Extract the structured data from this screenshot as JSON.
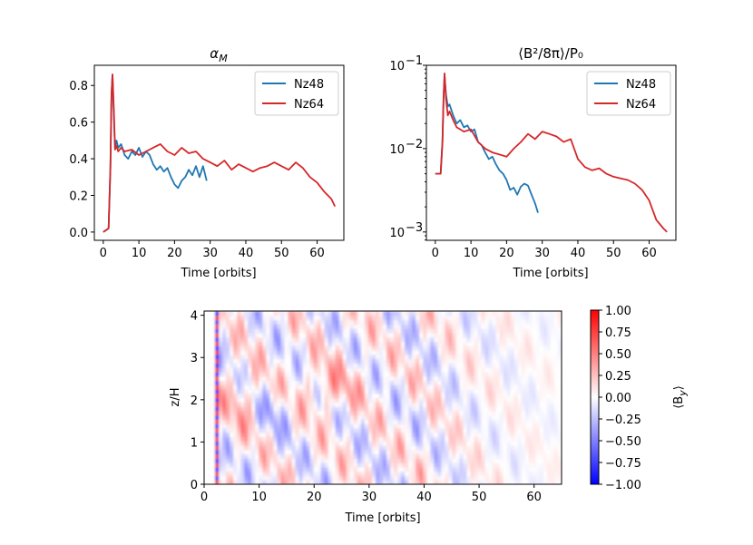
{
  "chart_data": [
    {
      "type": "line",
      "title_base": "α",
      "title_sub": "M",
      "xlabel": "Time [orbits]",
      "ylabel": "",
      "xlim": [
        -2.5,
        67.5
      ],
      "ylim": [
        -0.045,
        0.91
      ],
      "xticks": [
        0,
        10,
        20,
        30,
        40,
        50,
        60
      ],
      "yticks": [
        0.0,
        0.2,
        0.4,
        0.6,
        0.8
      ],
      "ytick_labels": [
        "0.0",
        "0.2",
        "0.4",
        "0.6",
        "0.8"
      ],
      "legend": [
        "Nz48",
        "Nz64"
      ],
      "legend_position": "upper-right",
      "series": [
        {
          "name": "Nz48",
          "color": "#1f77b4",
          "x": [
            0,
            1.5,
            2.0,
            2.3,
            2.6,
            3.0,
            3.3,
            3.7,
            4.2,
            5,
            6,
            7,
            8,
            9,
            10,
            11,
            12,
            13,
            14,
            15,
            16,
            17,
            18,
            19,
            20,
            21,
            22,
            23,
            24,
            25,
            26,
            27,
            28,
            29
          ],
          "y": [
            0.0,
            0.02,
            0.35,
            0.75,
            0.86,
            0.62,
            0.46,
            0.5,
            0.46,
            0.48,
            0.42,
            0.4,
            0.44,
            0.42,
            0.46,
            0.41,
            0.44,
            0.42,
            0.37,
            0.34,
            0.36,
            0.33,
            0.35,
            0.3,
            0.26,
            0.24,
            0.28,
            0.3,
            0.34,
            0.31,
            0.36,
            0.3,
            0.36,
            0.28
          ]
        },
        {
          "name": "Nz64",
          "color": "#d62728",
          "x": [
            0,
            1.5,
            2.0,
            2.3,
            2.6,
            3.0,
            3.3,
            3.7,
            4.2,
            5,
            6,
            8,
            10,
            12,
            14,
            16,
            18,
            20,
            22,
            24,
            26,
            28,
            30,
            32,
            34,
            36,
            38,
            40,
            42,
            44,
            46,
            48,
            50,
            52,
            54,
            56,
            58,
            60,
            62,
            64,
            65
          ],
          "y": [
            0.0,
            0.02,
            0.35,
            0.75,
            0.86,
            0.65,
            0.45,
            0.47,
            0.44,
            0.46,
            0.44,
            0.45,
            0.42,
            0.44,
            0.46,
            0.48,
            0.44,
            0.42,
            0.46,
            0.43,
            0.44,
            0.4,
            0.38,
            0.36,
            0.39,
            0.34,
            0.37,
            0.35,
            0.33,
            0.35,
            0.36,
            0.38,
            0.36,
            0.34,
            0.38,
            0.35,
            0.3,
            0.27,
            0.22,
            0.18,
            0.14
          ]
        }
      ]
    },
    {
      "type": "line",
      "title": "⟨B²/8π⟩/P₀",
      "xlabel": "Time [orbits]",
      "ylabel": "",
      "yscale": "log",
      "xlim": [
        -2.5,
        67.5
      ],
      "ylim_log10": [
        -3.1,
        -1.0
      ],
      "xticks": [
        0,
        10,
        20,
        30,
        40,
        50,
        60
      ],
      "yticks_log10": [
        -3,
        -2,
        -1
      ],
      "ytick_labels_base": "10",
      "ytick_labels_exp": [
        "−3",
        "−2",
        "−1"
      ],
      "legend": [
        "Nz48",
        "Nz64"
      ],
      "legend_position": "upper-right",
      "series": [
        {
          "name": "Nz48",
          "color": "#1f77b4",
          "x": [
            0,
            1.5,
            2.0,
            2.3,
            2.6,
            3.0,
            3.5,
            4.0,
            5,
            6,
            7,
            8,
            9,
            10,
            11,
            12,
            13,
            14,
            15,
            16,
            17,
            18,
            19,
            20,
            21,
            22,
            23,
            24,
            25,
            26,
            27,
            28,
            28.8
          ],
          "y": [
            0.005,
            0.005,
            0.012,
            0.04,
            0.075,
            0.045,
            0.032,
            0.034,
            0.025,
            0.02,
            0.022,
            0.018,
            0.019,
            0.016,
            0.017,
            0.012,
            0.011,
            0.009,
            0.0075,
            0.008,
            0.0065,
            0.0055,
            0.005,
            0.0042,
            0.0032,
            0.0034,
            0.0028,
            0.0035,
            0.0038,
            0.0036,
            0.0028,
            0.0022,
            0.0017
          ]
        },
        {
          "name": "Nz64",
          "color": "#d62728",
          "x": [
            0,
            1.5,
            2.0,
            2.3,
            2.6,
            3.0,
            3.5,
            4.0,
            5,
            6,
            8,
            10,
            12,
            14,
            16,
            18,
            20,
            22,
            24,
            26,
            28,
            30,
            32,
            34,
            36,
            38,
            40,
            42,
            44,
            46,
            48,
            50,
            52,
            54,
            56,
            58,
            60,
            62,
            64,
            65
          ],
          "y": [
            0.005,
            0.005,
            0.012,
            0.04,
            0.08,
            0.04,
            0.025,
            0.028,
            0.022,
            0.018,
            0.016,
            0.017,
            0.012,
            0.01,
            0.009,
            0.0085,
            0.008,
            0.01,
            0.012,
            0.015,
            0.013,
            0.016,
            0.015,
            0.014,
            0.012,
            0.013,
            0.0075,
            0.006,
            0.0055,
            0.0058,
            0.005,
            0.0046,
            0.0044,
            0.0042,
            0.0038,
            0.0032,
            0.0024,
            0.0014,
            0.0011,
            0.001
          ]
        }
      ]
    },
    {
      "type": "heatmap",
      "xlabel": "Time [orbits]",
      "ylabel": "z/H",
      "xlim": [
        0,
        65
      ],
      "ylim": [
        0,
        4.1
      ],
      "xticks": [
        0,
        10,
        20,
        30,
        40,
        50,
        60
      ],
      "yticks": [
        0,
        1,
        2,
        3,
        4
      ],
      "colorbar": {
        "label_base": "⟨B",
        "label_sub": "y",
        "label_end": "⟩",
        "range": [
          -1.0,
          1.0
        ],
        "colormap": "bwr",
        "ticks": [
          1.0,
          0.75,
          0.5,
          0.25,
          0.0,
          -0.25,
          -0.5,
          -0.75,
          -1.0
        ],
        "tick_labels": [
          "1.00",
          "0.75",
          "0.50",
          "0.25",
          "0.00",
          "−0.25",
          "−0.50",
          "−0.75",
          "−1.00"
        ]
      }
    }
  ]
}
